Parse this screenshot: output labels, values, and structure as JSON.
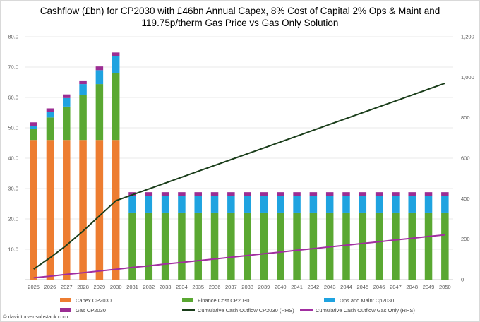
{
  "title_line1": "Cashflow (£bn) for CP2030 with £46bn Annual Capex, 8% Cost of Capital 2% Ops & Maint and",
  "title_line2": "119.75p/therm Gas Price vs Gas Only Solution",
  "credit": "© davidturver.substack.com",
  "colors": {
    "capex": "#ed7d31",
    "finance": "#5aa832",
    "ops": "#1fa3e0",
    "gas": "#9b2d93",
    "cum_cp2030": "#1a3d1a",
    "cum_gas": "#a12ea0",
    "grid": "#e3e3e3"
  },
  "chart_data": {
    "type": "bar",
    "stacked": true,
    "categories": [
      "2025",
      "2026",
      "2027",
      "2028",
      "2029",
      "2030",
      "2031",
      "2032",
      "2033",
      "2034",
      "2035",
      "2036",
      "2037",
      "2038",
      "2039",
      "2040",
      "2041",
      "2042",
      "2043",
      "2044",
      "2045",
      "2046",
      "2047",
      "2048",
      "2049",
      "2050"
    ],
    "y_left": {
      "range": [
        0,
        80
      ],
      "ticks": [
        "-",
        "10.0",
        "20.0",
        "30.0",
        "40.0",
        "50.0",
        "60.0",
        "70.0",
        "80.0"
      ]
    },
    "y_right": {
      "range": [
        0,
        1200
      ],
      "ticks": [
        "0",
        "200",
        "400",
        "600",
        "800",
        "1,000",
        "1,200"
      ]
    },
    "grid": true,
    "legend_position": "bottom",
    "series": [
      {
        "name": "Capex CP2030",
        "type": "bar",
        "axis": "left",
        "values": [
          46,
          46,
          46,
          46,
          46,
          46,
          0,
          0,
          0,
          0,
          0,
          0,
          0,
          0,
          0,
          0,
          0,
          0,
          0,
          0,
          0,
          0,
          0,
          0,
          0,
          0
        ]
      },
      {
        "name": "Finance Cost CP2030",
        "type": "bar",
        "axis": "left",
        "values": [
          3.7,
          7.4,
          11.0,
          14.7,
          18.4,
          22.1,
          22.1,
          22.1,
          22.1,
          22.1,
          22.1,
          22.1,
          22.1,
          22.1,
          22.1,
          22.1,
          22.1,
          22.1,
          22.1,
          22.1,
          22.1,
          22.1,
          22.1,
          22.1,
          22.1,
          22.1
        ]
      },
      {
        "name": "Ops and Maint Cp2030",
        "type": "bar",
        "axis": "left",
        "values": [
          0.9,
          1.8,
          2.8,
          3.7,
          4.6,
          5.5,
          5.5,
          5.5,
          5.5,
          5.5,
          5.5,
          5.5,
          5.5,
          5.5,
          5.5,
          5.5,
          5.5,
          5.5,
          5.5,
          5.5,
          5.5,
          5.5,
          5.5,
          5.5,
          5.5,
          5.5
        ]
      },
      {
        "name": "Gas CP2030",
        "type": "bar",
        "axis": "left",
        "values": [
          1.2,
          1.2,
          1.2,
          1.2,
          1.2,
          1.2,
          1.2,
          1.2,
          1.2,
          1.2,
          1.2,
          1.2,
          1.2,
          1.2,
          1.2,
          1.2,
          1.2,
          1.2,
          1.2,
          1.2,
          1.2,
          1.2,
          1.2,
          1.2,
          1.2,
          1.2
        ]
      },
      {
        "name": "Cumulative Cash Outflow CP2030 (RHS)",
        "type": "line",
        "axis": "right",
        "values": [
          52,
          108,
          170,
          240,
          315,
          390,
          419,
          448,
          477,
          506,
          535,
          564,
          593,
          622,
          651,
          680,
          709,
          738,
          767,
          796,
          825,
          854,
          883,
          912,
          941,
          970
        ]
      },
      {
        "name": "Cumulative Cash Outflow Gas Only (RHS)",
        "type": "line",
        "axis": "right",
        "values": [
          9,
          17,
          26,
          34,
          43,
          51,
          60,
          68,
          77,
          85,
          94,
          102,
          111,
          119,
          128,
          136,
          145,
          153,
          162,
          170,
          179,
          187,
          196,
          204,
          213,
          221
        ]
      }
    ]
  }
}
